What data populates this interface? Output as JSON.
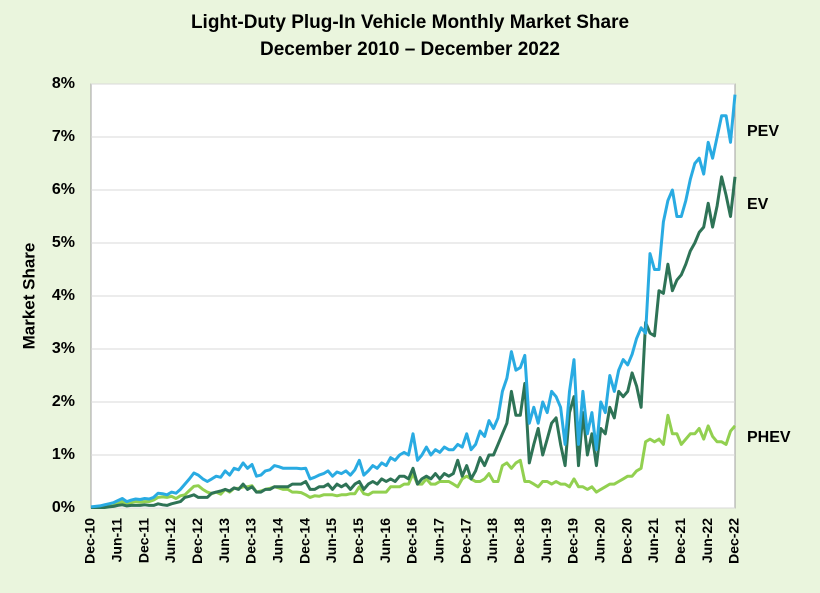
{
  "chart_data": {
    "type": "line",
    "title": "Light-Duty Plug-In Vehicle Monthly Market Share",
    "subtitle": "December 2010 – December 2022",
    "y_label": "Market Share",
    "categories": [
      "Dec-10",
      null,
      null,
      null,
      null,
      null,
      "Jun-11",
      null,
      null,
      null,
      null,
      null,
      "Dec-11",
      null,
      null,
      null,
      null,
      null,
      "Jun-12",
      null,
      null,
      null,
      null,
      null,
      "Dec-12",
      null,
      null,
      null,
      null,
      null,
      "Jun-13",
      null,
      null,
      null,
      null,
      null,
      "Dec-13",
      null,
      null,
      null,
      null,
      null,
      "Jun-14",
      null,
      null,
      null,
      null,
      null,
      "Dec-14",
      null,
      null,
      null,
      null,
      null,
      "Jun-15",
      null,
      null,
      null,
      null,
      null,
      "Dec-15",
      null,
      null,
      null,
      null,
      null,
      "Jun-16",
      null,
      null,
      null,
      null,
      null,
      "Dec-16",
      null,
      null,
      null,
      null,
      null,
      "Jun-17",
      null,
      null,
      null,
      null,
      null,
      "Dec-17",
      null,
      null,
      null,
      null,
      null,
      "Jun-18",
      null,
      null,
      null,
      null,
      null,
      "Dec-18",
      null,
      null,
      null,
      null,
      null,
      "Jun-19",
      null,
      null,
      null,
      null,
      null,
      "Dec-19",
      null,
      null,
      null,
      null,
      null,
      "Jun-20",
      null,
      null,
      null,
      null,
      null,
      "Dec-20",
      null,
      null,
      null,
      null,
      null,
      "Jun-21",
      null,
      null,
      null,
      null,
      null,
      "Dec-21",
      null,
      null,
      null,
      null,
      null,
      "Jun-22",
      null,
      null,
      null,
      null,
      null,
      "Dec-22"
    ],
    "series": [
      {
        "name": "PEV",
        "color": "#29abe2",
        "values": [
          0.02,
          0.03,
          0.04,
          0.06,
          0.08,
          0.1,
          0.14,
          0.18,
          0.12,
          0.15,
          0.17,
          0.16,
          0.18,
          0.17,
          0.2,
          0.28,
          0.27,
          0.25,
          0.3,
          0.28,
          0.35,
          0.45,
          0.55,
          0.66,
          0.62,
          0.55,
          0.5,
          0.55,
          0.6,
          0.58,
          0.7,
          0.62,
          0.75,
          0.72,
          0.85,
          0.75,
          0.82,
          0.6,
          0.62,
          0.7,
          0.72,
          0.8,
          0.78,
          0.75,
          0.75,
          0.75,
          0.75,
          0.74,
          0.75,
          0.55,
          0.58,
          0.62,
          0.65,
          0.7,
          0.6,
          0.68,
          0.65,
          0.7,
          0.62,
          0.72,
          0.9,
          0.62,
          0.7,
          0.8,
          0.75,
          0.85,
          0.8,
          0.95,
          0.9,
          1.0,
          1.05,
          1.0,
          1.4,
          0.9,
          1.0,
          1.15,
          1.0,
          1.1,
          1.05,
          1.15,
          1.1,
          1.1,
          1.2,
          1.15,
          1.4,
          1.1,
          1.2,
          1.45,
          1.35,
          1.65,
          1.5,
          1.7,
          2.2,
          2.45,
          2.95,
          2.6,
          2.65,
          2.88,
          1.6,
          1.9,
          1.6,
          2.0,
          1.8,
          2.2,
          2.1,
          1.9,
          1.2,
          2.2,
          2.8,
          1.2,
          2.2,
          1.4,
          1.8,
          1.1,
          2.0,
          1.8,
          2.5,
          2.2,
          2.6,
          2.8,
          2.7,
          2.9,
          3.2,
          3.4,
          3.3,
          4.8,
          4.5,
          4.5,
          5.4,
          5.8,
          6.0,
          5.5,
          5.5,
          5.8,
          6.2,
          6.5,
          6.6,
          6.3,
          6.9,
          6.6,
          7.0,
          7.4,
          7.4,
          6.9,
          7.8
        ]
      },
      {
        "name": "EV",
        "color": "#2e7356",
        "values": [
          0.01,
          0.01,
          0.01,
          0.01,
          0.02,
          0.03,
          0.05,
          0.06,
          0.04,
          0.05,
          0.05,
          0.05,
          0.06,
          0.05,
          0.05,
          0.08,
          0.06,
          0.05,
          0.08,
          0.1,
          0.12,
          0.2,
          0.22,
          0.25,
          0.2,
          0.2,
          0.2,
          0.28,
          0.3,
          0.32,
          0.35,
          0.32,
          0.38,
          0.35,
          0.45,
          0.35,
          0.4,
          0.3,
          0.3,
          0.35,
          0.35,
          0.4,
          0.4,
          0.4,
          0.4,
          0.45,
          0.45,
          0.45,
          0.5,
          0.35,
          0.35,
          0.4,
          0.4,
          0.45,
          0.35,
          0.45,
          0.4,
          0.45,
          0.35,
          0.45,
          0.5,
          0.35,
          0.45,
          0.5,
          0.45,
          0.55,
          0.5,
          0.55,
          0.5,
          0.6,
          0.6,
          0.55,
          0.75,
          0.45,
          0.55,
          0.6,
          0.55,
          0.65,
          0.55,
          0.65,
          0.6,
          0.65,
          0.9,
          0.6,
          0.8,
          0.55,
          0.7,
          0.95,
          0.8,
          1.0,
          1.0,
          1.2,
          1.4,
          1.6,
          2.2,
          1.75,
          1.75,
          2.35,
          0.85,
          1.2,
          1.5,
          1.0,
          1.3,
          1.6,
          1.7,
          1.2,
          0.8,
          1.8,
          2.1,
          0.8,
          1.8,
          1.0,
          1.4,
          0.8,
          1.5,
          1.4,
          1.9,
          1.7,
          2.2,
          2.1,
          2.2,
          2.55,
          2.3,
          1.9,
          3.5,
          3.3,
          3.25,
          4.1,
          4.05,
          4.6,
          4.1,
          4.3,
          4.4,
          4.6,
          4.85,
          5.0,
          5.2,
          5.3,
          5.75,
          5.3,
          5.7,
          6.25,
          5.9,
          5.5,
          6.25
        ]
      },
      {
        "name": "PHEV",
        "color": "#92d050",
        "values": [
          0.01,
          0.02,
          0.03,
          0.05,
          0.06,
          0.07,
          0.08,
          0.12,
          0.08,
          0.1,
          0.12,
          0.11,
          0.12,
          0.12,
          0.15,
          0.2,
          0.21,
          0.2,
          0.22,
          0.18,
          0.23,
          0.25,
          0.33,
          0.41,
          0.42,
          0.35,
          0.3,
          0.27,
          0.3,
          0.26,
          0.35,
          0.3,
          0.37,
          0.37,
          0.4,
          0.4,
          0.42,
          0.3,
          0.32,
          0.35,
          0.37,
          0.4,
          0.38,
          0.35,
          0.35,
          0.3,
          0.3,
          0.29,
          0.25,
          0.2,
          0.23,
          0.22,
          0.25,
          0.25,
          0.25,
          0.23,
          0.25,
          0.25,
          0.27,
          0.27,
          0.4,
          0.27,
          0.25,
          0.3,
          0.3,
          0.3,
          0.3,
          0.4,
          0.4,
          0.4,
          0.45,
          0.45,
          0.65,
          0.45,
          0.45,
          0.55,
          0.45,
          0.45,
          0.5,
          0.5,
          0.5,
          0.45,
          0.4,
          0.55,
          0.6,
          0.55,
          0.5,
          0.5,
          0.55,
          0.65,
          0.5,
          0.5,
          0.8,
          0.85,
          0.75,
          0.85,
          0.9,
          0.5,
          0.5,
          0.45,
          0.4,
          0.5,
          0.5,
          0.45,
          0.5,
          0.45,
          0.45,
          0.4,
          0.55,
          0.4,
          0.4,
          0.35,
          0.4,
          0.3,
          0.35,
          0.4,
          0.45,
          0.45,
          0.5,
          0.55,
          0.6,
          0.6,
          0.7,
          0.75,
          1.25,
          1.3,
          1.25,
          1.3,
          1.2,
          1.75,
          1.4,
          1.4,
          1.2,
          1.3,
          1.4,
          1.4,
          1.5,
          1.3,
          1.55,
          1.35,
          1.25,
          1.25,
          1.2,
          1.45,
          1.55
        ]
      }
    ],
    "ylim": [
      0,
      8
    ],
    "yticks": [
      {
        "value": 0,
        "label": "0%"
      },
      {
        "value": 1,
        "label": "1%"
      },
      {
        "value": 2,
        "label": "2%"
      },
      {
        "value": 3,
        "label": "3%"
      },
      {
        "value": 4,
        "label": "4%"
      },
      {
        "value": 5,
        "label": "5%"
      },
      {
        "value": 6,
        "label": "6%"
      },
      {
        "value": 7,
        "label": "7%"
      },
      {
        "value": 8,
        "label": "8%"
      }
    ],
    "grid": true
  }
}
